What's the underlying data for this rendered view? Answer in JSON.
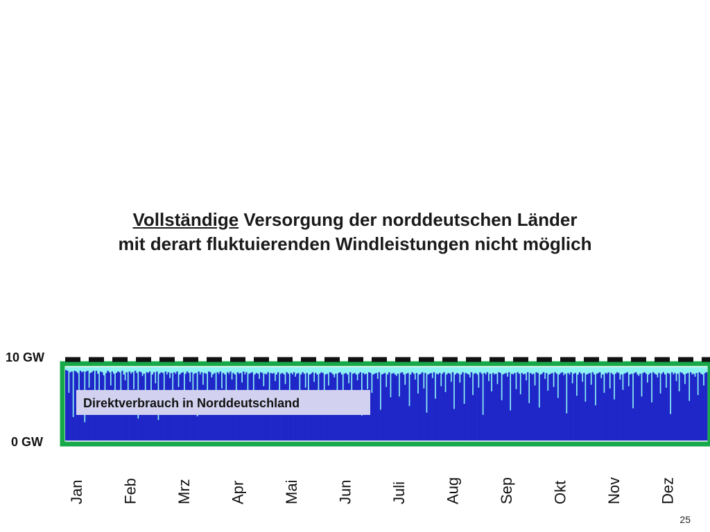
{
  "headline": {
    "underlined": "Vollständige",
    "line1_rest": " Versorgung der norddeutschen Länder",
    "line2": "mit derart fluktuierenden Windleistungen nicht möglich"
  },
  "page_number": "25",
  "colors": {
    "wind_fill": "#1f27c8",
    "background_fill": "#8ef2f2",
    "frame": "#17a84a",
    "dashed_line": "#111111",
    "label_box": "#d2d2f0"
  },
  "chart_data": {
    "type": "area",
    "title": "",
    "ylabel": "",
    "ylim": [
      0,
      10
    ],
    "y_ticks": [
      "0 GW",
      "10 GW"
    ],
    "months": [
      "Jan",
      "Feb",
      "Mrz",
      "Apr",
      "Mai",
      "Jun",
      "Juli",
      "Aug",
      "Sep",
      "Okt",
      "Nov",
      "Dez"
    ],
    "reference_line": {
      "value": 10,
      "style": "dashed"
    },
    "overlay_label": "Direktverbrauch  in Norddeutschland",
    "series": [
      {
        "values": [
          9.6,
          9.5,
          6.5,
          9.3,
          9.4,
          3.2,
          9.5,
          9.4,
          9.2,
          6.2,
          9.5,
          9.3,
          9.4,
          2.5,
          9.4,
          9.5,
          7.2,
          9.2,
          9.3,
          9.5,
          4.1,
          9.5,
          9.1,
          6.8,
          9.4,
          9.3,
          8.9,
          3.6,
          9.2,
          9.5,
          9.3,
          7.5,
          9.4,
          9.1,
          5.0,
          9.2,
          9.4,
          9.3,
          6.0,
          9.5,
          9.0,
          8.2,
          9.3,
          4.5,
          9.4,
          9.1,
          9.3,
          7.0,
          9.5,
          9.2,
          3.0,
          9.4,
          9.3,
          8.8,
          9.1,
          5.5,
          9.3,
          9.2,
          9.4,
          6.6,
          9.0,
          9.3,
          7.8,
          9.4,
          2.8,
          9.1,
          9.3,
          9.2,
          6.4,
          9.4,
          9.0,
          9.3,
          8.5,
          9.2,
          4.8,
          9.3,
          9.1,
          9.4,
          7.3,
          9.0,
          9.2,
          9.3,
          5.8,
          9.1,
          9.4,
          9.2,
          8.0,
          9.3,
          6.9,
          9.1,
          9.2,
          3.3,
          9.4,
          9.0,
          9.3,
          7.6,
          9.2,
          9.1,
          5.3,
          9.4,
          9.3,
          8.6,
          9.0,
          9.2,
          4.4,
          9.3,
          9.1,
          9.4,
          7.1,
          9.2,
          9.0,
          6.2,
          9.3,
          9.1,
          9.4,
          8.3,
          9.2,
          9.0,
          5.1,
          9.3,
          9.1,
          9.2,
          7.9,
          9.4,
          9.0,
          9.3,
          6.7,
          9.1,
          9.2,
          9.3,
          4.0,
          9.0,
          9.2,
          9.1,
          8.4,
          9.3,
          9.2,
          7.4,
          9.1,
          9.0,
          9.3,
          5.6,
          9.2,
          9.1,
          9.2,
          8.1,
          9.0,
          9.3,
          6.3,
          9.1,
          9.2,
          9.0,
          7.7,
          9.3,
          9.1,
          4.9,
          9.2,
          9.0,
          9.3,
          8.7,
          9.1,
          9.2,
          6.1,
          9.0,
          9.3,
          9.1,
          7.2,
          9.2,
          3.9,
          9.0,
          9.1,
          9.3,
          8.0,
          9.2,
          9.0,
          6.8,
          9.1,
          9.3,
          9.2,
          5.2,
          9.0,
          9.1,
          7.5,
          9.3,
          9.2,
          9.0,
          8.6,
          9.1,
          4.6,
          9.2,
          9.3,
          9.0,
          6.9,
          9.1,
          9.2,
          9.0,
          7.8,
          9.3,
          5.4,
          9.1,
          9.2,
          9.0,
          8.2,
          9.1,
          9.3,
          3.4,
          9.2,
          9.0,
          9.1,
          7.0,
          9.3,
          9.2,
          6.5,
          9.0,
          9.1,
          9.2,
          8.4,
          9.3,
          4.2,
          9.0,
          9.1,
          9.2,
          7.3,
          9.0,
          9.3,
          5.9,
          9.1,
          9.2,
          9.0,
          8.8,
          9.1,
          6.0,
          9.2,
          9.3,
          9.0,
          7.6,
          9.1,
          9.2,
          4.7,
          9.0,
          9.3,
          9.1,
          8.3,
          9.2,
          6.4,
          9.0,
          9.1,
          9.3,
          7.1,
          9.2,
          3.8,
          9.0,
          9.1,
          9.2,
          8.5,
          9.3,
          5.7,
          9.1,
          9.0,
          9.2,
          7.4,
          9.1,
          9.3,
          6.6,
          9.0,
          9.2,
          9.1,
          8.0,
          9.3,
          4.3,
          9.0,
          9.2,
          9.1,
          7.9,
          9.0,
          9.3,
          5.0,
          9.2,
          9.1,
          9.0,
          8.6,
          9.3,
          6.2,
          9.1,
          9.2,
          9.0,
          7.2,
          9.3,
          9.1,
          3.5,
          9.2,
          9.0,
          9.3,
          8.1,
          9.1,
          6.7,
          9.2,
          9.0,
          9.1,
          7.7,
          9.3,
          9.2,
          5.5,
          9.0,
          9.1,
          9.2,
          8.7,
          9.3,
          4.1,
          9.1,
          9.0,
          9.2,
          7.0,
          9.3,
          9.1,
          6.3,
          9.2,
          9.0,
          9.1,
          8.2,
          9.3,
          5.1,
          9.2,
          9.0,
          9.1,
          7.5,
          9.3,
          9.2,
          4.5,
          9.0,
          9.1,
          9.3,
          8.4,
          9.2,
          6.8,
          9.0,
          9.1,
          9.2,
          7.3,
          9.3,
          9.1,
          5.8,
          9.0,
          9.2,
          9.3,
          8.9,
          9.1,
          3.7,
          9.2,
          9.0,
          9.3,
          7.8,
          9.1,
          9.2,
          6.1,
          9.0,
          9.3,
          9.1,
          8.0,
          9.2,
          5.3,
          9.0,
          9.1,
          9.2,
          7.6,
          9.3,
          9.0,
          4.8,
          9.1,
          9.2,
          9.3,
          8.5,
          9.0,
          6.5,
          9.2,
          9.1,
          9.3,
          7.1,
          9.2,
          9.0,
          5.6,
          9.1,
          9.3,
          9.2,
          8.3,
          9.0,
          6.9,
          9.1,
          9.2,
          9.3,
          7.4,
          9.0,
          9.1,
          4.4,
          9.2,
          9.3,
          9.0,
          8.8,
          9.1,
          6.0,
          9.2,
          9.3,
          9.1,
          7.9,
          9.0,
          9.2,
          5.2,
          9.3,
          9.1,
          9.0,
          8.6,
          9.2,
          6.4,
          9.1,
          9.3,
          9.0,
          7.2,
          9.2,
          9.1,
          3.6,
          9.3,
          9.0,
          9.2,
          8.1,
          9.1,
          6.7,
          9.3,
          9.2,
          9.0,
          7.7,
          9.1,
          9.2,
          5.4,
          9.3,
          9.0,
          9.1,
          8.7,
          9.2,
          6.2,
          9.3,
          9.1,
          9.0,
          7.5,
          9.2,
          9.3
        ]
      }
    ]
  }
}
